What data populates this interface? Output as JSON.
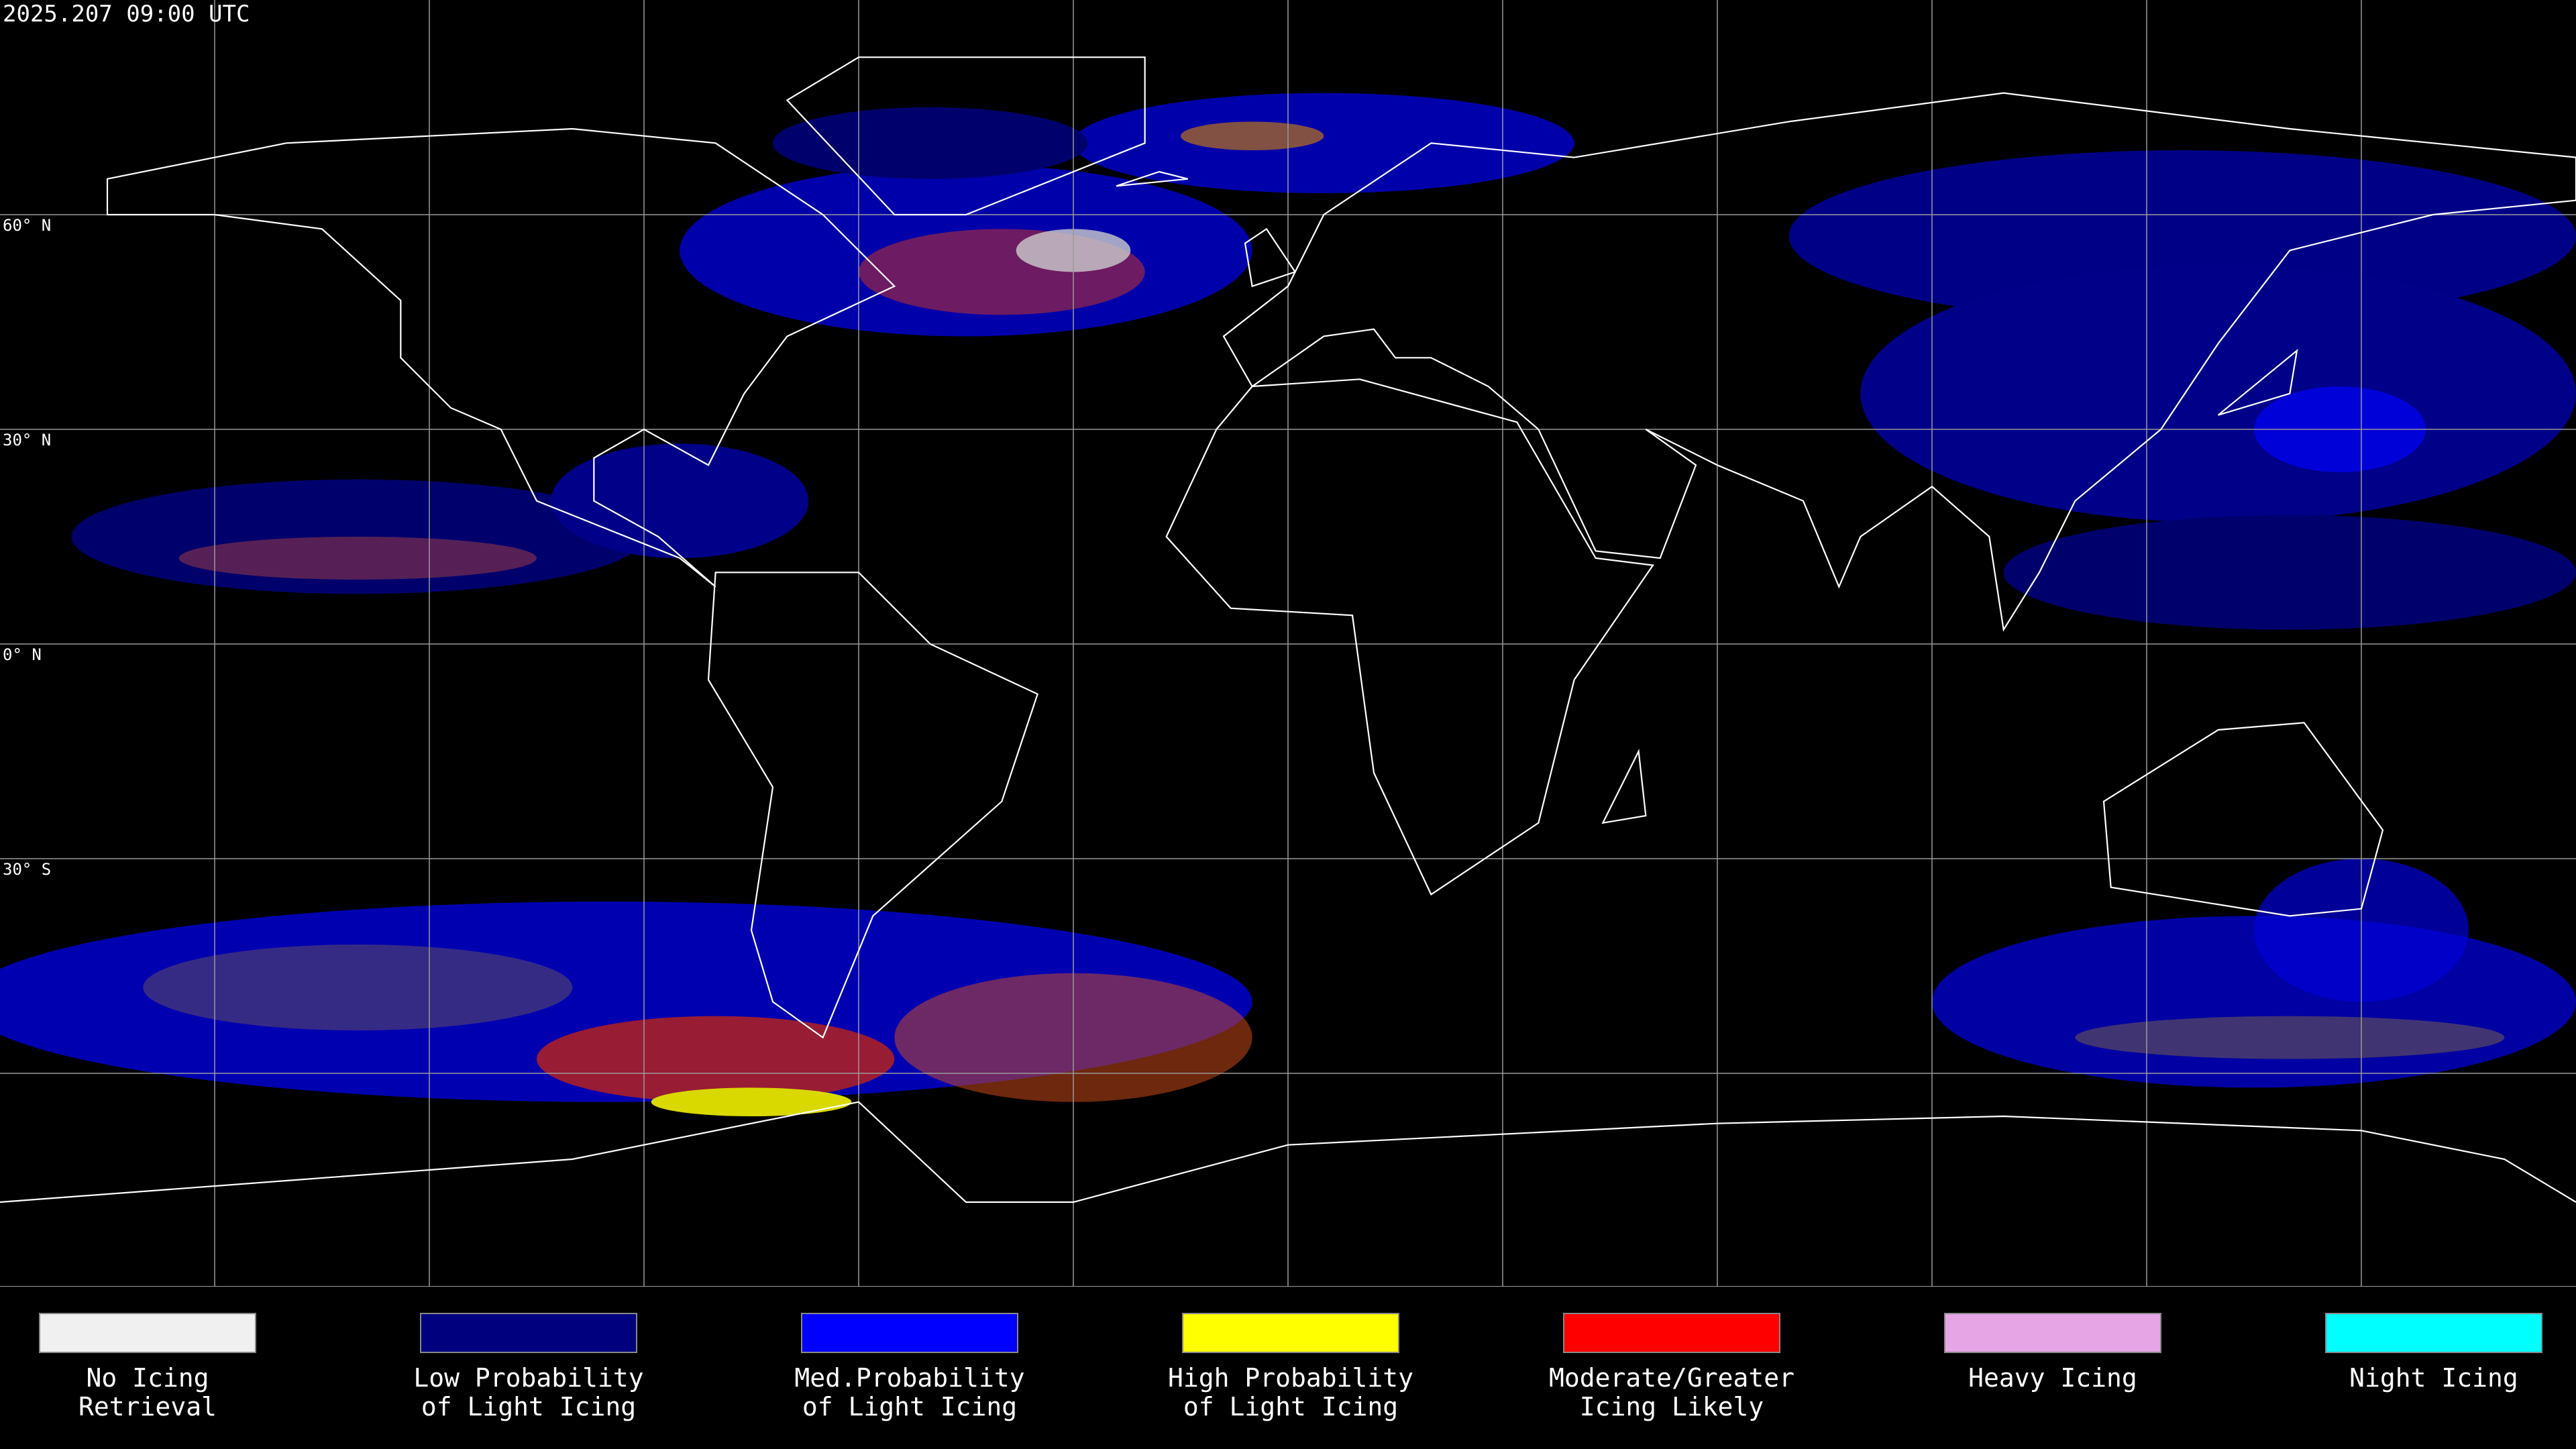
{
  "timestamp": "2025.207 09:00 UTC",
  "latitude_labels": [
    "60° N",
    "30° N",
    "0° N",
    "30° S"
  ],
  "legend": {
    "items": [
      {
        "label_lines": [
          "No Icing",
          "Retrieval"
        ],
        "color": "#f0f0f0"
      },
      {
        "label_lines": [
          "Low Probability",
          "of Light Icing"
        ],
        "color": "#00007f"
      },
      {
        "label_lines": [
          "Med.Probability",
          "of Light Icing"
        ],
        "color": "#0000ff"
      },
      {
        "label_lines": [
          "High Probability",
          "of Light Icing"
        ],
        "color": "#ffff00"
      },
      {
        "label_lines": [
          "Moderate/Greater",
          "Icing Likely"
        ],
        "color": "#ff0000"
      },
      {
        "label_lines": [
          "Heavy Icing"
        ],
        "color": "#e6a6e6"
      },
      {
        "label_lines": [
          "Night Icing"
        ],
        "color": "#00ffff"
      }
    ]
  }
}
